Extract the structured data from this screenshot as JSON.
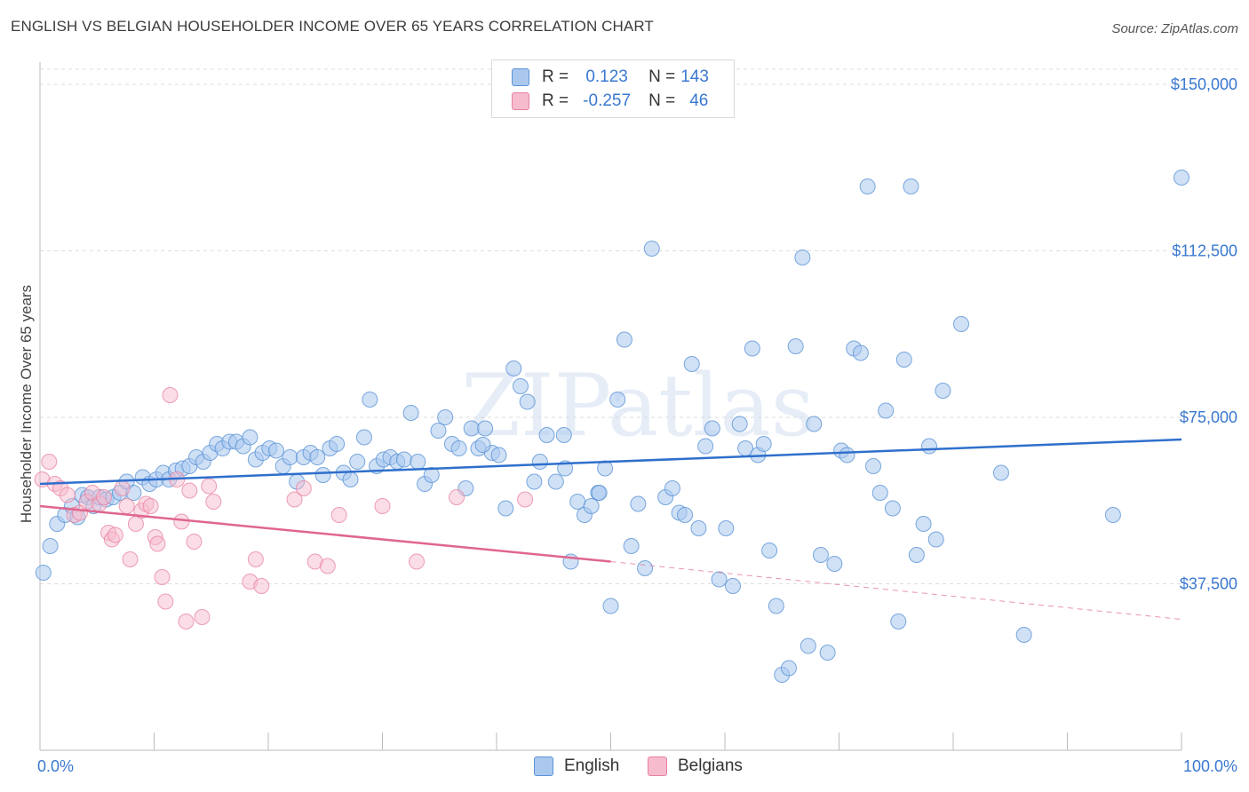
{
  "title": "ENGLISH VS BELGIAN HOUSEHOLDER INCOME OVER 65 YEARS CORRELATION CHART",
  "source": "Source: ZipAtlas.com",
  "watermark": "ZIPatlas",
  "legend": {
    "rows": [
      {
        "r_label": "R =",
        "r_value": "0.123",
        "n_label": "N =",
        "n_value": "143"
      },
      {
        "r_label": "R =",
        "r_value": "-0.257",
        "n_label": "N =",
        "n_value": "46"
      }
    ]
  },
  "bottom_legend": {
    "english": "English",
    "belgians": "Belgians"
  },
  "colors": {
    "english_fill": "#aac8ee",
    "english_stroke": "#5b93d6",
    "english_line": "#2f6fcc",
    "belgian_fill": "#f6bccd",
    "belgian_stroke": "#e8809f",
    "belgian_line": "#e0668f",
    "tick_text": "#3a78d0",
    "grid": "#dddddd"
  },
  "chart_data": {
    "type": "scatter",
    "title": "ENGLISH VS BELGIAN HOUSEHOLDER INCOME OVER 65 YEARS CORRELATION CHART",
    "xlabel": "",
    "ylabel": "Householder Income Over 65 years",
    "xlim": [
      0,
      100
    ],
    "ylim": [
      0,
      155000
    ],
    "x_tick_labels": [
      "0.0%",
      "100.0%"
    ],
    "y_ticks": [
      37500,
      75000,
      112500,
      150000
    ],
    "y_tick_labels": [
      "$37,500",
      "$75,000",
      "$112,500",
      "$150,000"
    ],
    "grid": true,
    "legend_position": "top-center",
    "series": [
      {
        "name": "English",
        "r": 0.123,
        "n": 143,
        "trend": {
          "x": [
            0,
            100
          ],
          "y": [
            60000,
            70000
          ]
        },
        "points": [
          [
            0.3,
            40000
          ],
          [
            0.9,
            46000
          ],
          [
            1.5,
            51000
          ],
          [
            2.2,
            53000
          ],
          [
            2.8,
            55000
          ],
          [
            3.3,
            52500
          ],
          [
            3.7,
            57500
          ],
          [
            4.2,
            57000
          ],
          [
            4.7,
            55000
          ],
          [
            5.2,
            57000
          ],
          [
            5.8,
            56500
          ],
          [
            6.4,
            57000
          ],
          [
            7.0,
            58000
          ],
          [
            7.6,
            60500
          ],
          [
            8.2,
            58000
          ],
          [
            9.0,
            61500
          ],
          [
            9.6,
            60000
          ],
          [
            10.2,
            61000
          ],
          [
            10.8,
            62500
          ],
          [
            11.3,
            61000
          ],
          [
            11.9,
            63000
          ],
          [
            12.5,
            63500
          ],
          [
            13.1,
            64000
          ],
          [
            13.7,
            66000
          ],
          [
            14.3,
            65000
          ],
          [
            14.9,
            67000
          ],
          [
            15.5,
            69000
          ],
          [
            16.0,
            68000
          ],
          [
            16.6,
            69500
          ],
          [
            17.2,
            69500
          ],
          [
            17.8,
            68500
          ],
          [
            18.4,
            70500
          ],
          [
            18.9,
            65500
          ],
          [
            19.5,
            67000
          ],
          [
            20.1,
            68000
          ],
          [
            20.7,
            67500
          ],
          [
            21.3,
            64000
          ],
          [
            21.9,
            66000
          ],
          [
            22.5,
            60500
          ],
          [
            23.1,
            66000
          ],
          [
            23.7,
            67000
          ],
          [
            24.3,
            66000
          ],
          [
            24.8,
            62000
          ],
          [
            25.4,
            68000
          ],
          [
            26.0,
            69000
          ],
          [
            26.6,
            62500
          ],
          [
            27.2,
            61000
          ],
          [
            27.8,
            65000
          ],
          [
            28.4,
            70500
          ],
          [
            28.9,
            79000
          ],
          [
            29.5,
            64000
          ],
          [
            30.1,
            65500
          ],
          [
            30.7,
            66000
          ],
          [
            31.3,
            65000
          ],
          [
            31.9,
            65500
          ],
          [
            32.5,
            76000
          ],
          [
            33.1,
            65000
          ],
          [
            33.7,
            60000
          ],
          [
            34.3,
            62000
          ],
          [
            34.9,
            72000
          ],
          [
            35.5,
            75000
          ],
          [
            36.1,
            69000
          ],
          [
            36.7,
            68000
          ],
          [
            37.3,
            59000
          ],
          [
            37.8,
            72500
          ],
          [
            38.4,
            68000
          ],
          [
            39.0,
            72500
          ],
          [
            39.6,
            67000
          ],
          [
            40.2,
            66500
          ],
          [
            40.8,
            54500
          ],
          [
            41.5,
            86000
          ],
          [
            42.1,
            82000
          ],
          [
            42.7,
            78500
          ],
          [
            43.3,
            60500
          ],
          [
            43.8,
            65000
          ],
          [
            44.4,
            71000
          ],
          [
            45.2,
            60500
          ],
          [
            45.9,
            71000
          ],
          [
            46.5,
            42500
          ],
          [
            47.1,
            56000
          ],
          [
            47.7,
            53000
          ],
          [
            48.3,
            55000
          ],
          [
            48.9,
            58000
          ],
          [
            49.5,
            63500
          ],
          [
            50.0,
            32500
          ],
          [
            50.6,
            79000
          ],
          [
            51.2,
            92500
          ],
          [
            51.8,
            46000
          ],
          [
            52.4,
            55500
          ],
          [
            53.0,
            41000
          ],
          [
            53.6,
            113000
          ],
          [
            54.8,
            57000
          ],
          [
            55.4,
            59000
          ],
          [
            56.0,
            53500
          ],
          [
            56.5,
            53000
          ],
          [
            57.1,
            87000
          ],
          [
            57.7,
            50000
          ],
          [
            58.3,
            68500
          ],
          [
            58.9,
            72500
          ],
          [
            59.5,
            38500
          ],
          [
            60.1,
            50000
          ],
          [
            60.7,
            37000
          ],
          [
            61.3,
            73500
          ],
          [
            61.8,
            68000
          ],
          [
            62.4,
            90500
          ],
          [
            62.9,
            66500
          ],
          [
            63.4,
            69000
          ],
          [
            63.9,
            45000
          ],
          [
            64.5,
            32500
          ],
          [
            65.0,
            17000
          ],
          [
            65.6,
            18500
          ],
          [
            66.2,
            91000
          ],
          [
            66.8,
            111000
          ],
          [
            67.3,
            23500
          ],
          [
            67.8,
            73500
          ],
          [
            68.4,
            44000
          ],
          [
            69.0,
            22000
          ],
          [
            69.6,
            42000
          ],
          [
            70.2,
            67500
          ],
          [
            70.7,
            66500
          ],
          [
            71.3,
            90500
          ],
          [
            71.9,
            89500
          ],
          [
            72.5,
            127000
          ],
          [
            73.0,
            64000
          ],
          [
            73.6,
            58000
          ],
          [
            74.1,
            76500
          ],
          [
            74.7,
            54500
          ],
          [
            75.2,
            29000
          ],
          [
            75.7,
            88000
          ],
          [
            76.3,
            127000
          ],
          [
            76.8,
            44000
          ],
          [
            77.4,
            51000
          ],
          [
            77.9,
            68500
          ],
          [
            78.5,
            47500
          ],
          [
            79.1,
            81000
          ],
          [
            80.7,
            96000
          ],
          [
            84.2,
            62500
          ],
          [
            86.2,
            26000
          ],
          [
            94.0,
            53000
          ],
          [
            100.0,
            129000
          ],
          [
            49.0,
            58000
          ],
          [
            46.0,
            63500
          ],
          [
            38.8,
            68800
          ]
        ]
      },
      {
        "name": "Belgians",
        "r": -0.257,
        "n": 46,
        "trend": {
          "x": [
            0,
            50
          ],
          "y": [
            55000,
            42500
          ]
        },
        "trend_dashed": {
          "x": [
            50,
            100
          ],
          "y": [
            42500,
            29500
          ]
        },
        "points": [
          [
            0.2,
            61000
          ],
          [
            0.8,
            65000
          ],
          [
            1.3,
            60000
          ],
          [
            1.8,
            59000
          ],
          [
            2.4,
            57500
          ],
          [
            3.0,
            53000
          ],
          [
            3.5,
            53500
          ],
          [
            4.1,
            56000
          ],
          [
            4.6,
            58000
          ],
          [
            5.2,
            55500
          ],
          [
            5.6,
            57000
          ],
          [
            6.0,
            49000
          ],
          [
            6.3,
            47500
          ],
          [
            6.6,
            48500
          ],
          [
            7.2,
            59000
          ],
          [
            7.6,
            55000
          ],
          [
            7.9,
            43000
          ],
          [
            8.4,
            51000
          ],
          [
            8.9,
            54000
          ],
          [
            9.3,
            55500
          ],
          [
            9.7,
            55000
          ],
          [
            10.1,
            48000
          ],
          [
            10.3,
            46500
          ],
          [
            10.7,
            39000
          ],
          [
            11.0,
            33500
          ],
          [
            11.4,
            80000
          ],
          [
            12.0,
            61000
          ],
          [
            12.4,
            51500
          ],
          [
            12.8,
            29000
          ],
          [
            13.1,
            58500
          ],
          [
            13.5,
            47000
          ],
          [
            14.2,
            30000
          ],
          [
            14.8,
            59500
          ],
          [
            15.2,
            56000
          ],
          [
            18.4,
            38000
          ],
          [
            18.9,
            43000
          ],
          [
            19.4,
            37000
          ],
          [
            22.3,
            56500
          ],
          [
            23.1,
            59000
          ],
          [
            24.1,
            42500
          ],
          [
            25.2,
            41500
          ],
          [
            26.2,
            53000
          ],
          [
            30.0,
            55000
          ],
          [
            33.0,
            42500
          ],
          [
            36.5,
            57000
          ],
          [
            42.5,
            56500
          ]
        ]
      }
    ]
  }
}
